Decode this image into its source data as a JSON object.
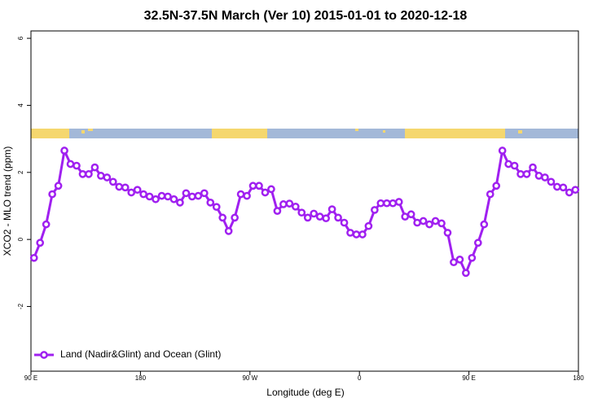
{
  "chart_data": {
    "type": "line",
    "title": "32.5N-37.5N March (Ver 10)   2015-01-01 to 2020-12-18",
    "x_label": "Longitude (deg E)",
    "y_label": "XCO2 - MLO trend (ppm)",
    "x": [
      92.5,
      97.5,
      102.5,
      107.5,
      112.5,
      117.5,
      122.5,
      127.5,
      132.5,
      137.5,
      142.5,
      147.5,
      152.5,
      157.5,
      162.5,
      167.5,
      172.5,
      177.5,
      182.5,
      187.5,
      192.5,
      197.5,
      202.5,
      207.5,
      212.5,
      217.5,
      222.5,
      227.5,
      232.5,
      237.5,
      242.5,
      247.5,
      252.5,
      257.5,
      262.5,
      267.5,
      272.5,
      277.5,
      282.5,
      287.5,
      292.5,
      297.5,
      302.5,
      307.5,
      312.5,
      317.5,
      322.5,
      327.5,
      332.5,
      337.5,
      342.5,
      347.5,
      352.5,
      357.5,
      362.5,
      367.5,
      372.5,
      377.5,
      382.5,
      387.5,
      392.5,
      397.5,
      402.5,
      407.5,
      412.5,
      417.5,
      422.5,
      427.5,
      432.5,
      437.5,
      442.5,
      447.5,
      452.5,
      457.5,
      462.5,
      467.5,
      472.5,
      477.5,
      482.5,
      487.5,
      492.5,
      497.5,
      502.5,
      507.5,
      512.5,
      517.5,
      522.5,
      527.5,
      532.5,
      537.5
    ],
    "series": [
      {
        "name": "Land (Nadir&Glint) and Ocean (Glint)",
        "color": "#a020f0",
        "values": [
          -0.55,
          -0.1,
          0.45,
          1.35,
          1.6,
          2.65,
          2.25,
          2.2,
          1.95,
          1.95,
          2.15,
          1.9,
          1.85,
          1.72,
          1.57,
          1.55,
          1.4,
          1.48,
          1.35,
          1.28,
          1.2,
          1.3,
          1.28,
          1.2,
          1.1,
          1.38,
          1.28,
          1.3,
          1.38,
          1.1,
          0.97,
          0.65,
          0.25,
          0.65,
          1.35,
          1.3,
          1.6,
          1.6,
          1.4,
          1.5,
          0.85,
          1.05,
          1.07,
          0.98,
          0.8,
          0.65,
          0.77,
          0.68,
          0.63,
          0.9,
          0.65,
          0.5,
          0.2,
          0.15,
          0.15,
          0.4,
          0.88,
          1.08,
          1.08,
          1.08,
          1.12,
          0.68,
          0.75,
          0.5,
          0.55,
          0.45,
          0.55,
          0.48,
          0.2,
          -0.68,
          -0.6,
          -1.0,
          -0.55,
          -0.1,
          0.45,
          1.35,
          1.6,
          2.65,
          2.25,
          2.2,
          1.95,
          1.95,
          2.15,
          1.9,
          1.85,
          1.72,
          1.57,
          1.55,
          1.4,
          1.48
        ]
      }
    ],
    "xlim": [
      90,
      540
    ],
    "xticks": [
      {
        "value": 90,
        "label": "90 E"
      },
      180,
      {
        "value": 270,
        "label": "90 W"
      },
      {
        "value": 360,
        "label": "0"
      },
      {
        "value": 450,
        "label": "90 E"
      },
      {
        "value": 540,
        "label": "180"
      }
    ],
    "ylim": [
      -3.93,
      6.22
    ],
    "yticks": [
      -2,
      0,
      2,
      4,
      6
    ],
    "legend": "bottom-left"
  }
}
